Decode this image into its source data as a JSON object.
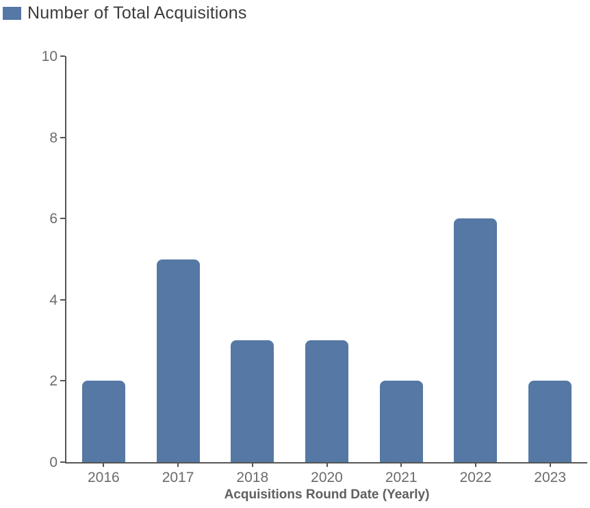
{
  "legend": {
    "label": "Number of Total Acquisitions",
    "swatch_color": "#5578a5"
  },
  "chart_data": {
    "type": "bar",
    "title": "",
    "categories": [
      "2016",
      "2017",
      "2018",
      "2020",
      "2021",
      "2022",
      "2023"
    ],
    "series": [
      {
        "name": "Number of Total Acquisitions",
        "values": [
          2,
          5,
          3,
          3,
          2,
          6,
          2
        ]
      }
    ],
    "xlabel": "Acquisitions Round Date (Yearly)",
    "ylabel": "",
    "ylim": [
      0,
      10
    ],
    "yticks": [
      0,
      2,
      4,
      6,
      8,
      10
    ],
    "bar_color": "#5578a5",
    "grid": false,
    "legend_position": "top-left"
  }
}
